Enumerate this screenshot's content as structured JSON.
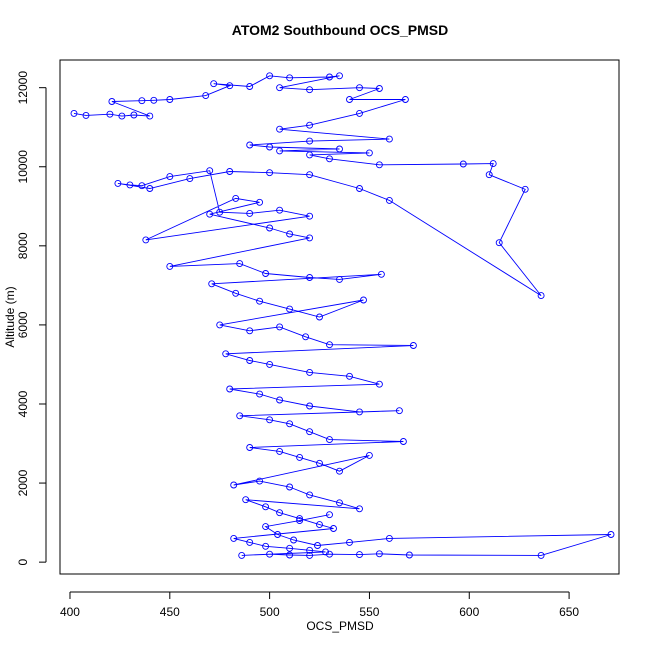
{
  "chart_data": {
    "type": "line",
    "title": "ATOM2 Southbound OCS_PMSD",
    "xlabel": "OCS_PMSD",
    "ylabel": "Altitude (m)",
    "xlim": [
      395,
      675
    ],
    "ylim": [
      -300,
      12700
    ],
    "x_ticks": [
      400,
      450,
      500,
      550,
      600,
      650
    ],
    "y_ticks": [
      0,
      2000,
      4000,
      6000,
      8000,
      10000,
      12000
    ],
    "grid": false,
    "legend": "none",
    "marker": "open-circle",
    "series": [
      {
        "color": "#0000ff",
        "points": [
          [
            402,
            11350
          ],
          [
            408,
            11300
          ],
          [
            420,
            11330
          ],
          [
            426,
            11280
          ],
          [
            432,
            11310
          ],
          [
            440,
            11280
          ],
          [
            421,
            11650
          ],
          [
            436,
            11670
          ],
          [
            442,
            11680
          ],
          [
            450,
            11700
          ],
          [
            468,
            11800
          ],
          [
            480,
            12050
          ],
          [
            472,
            12100
          ],
          [
            490,
            12030
          ],
          [
            500,
            12300
          ],
          [
            510,
            12250
          ],
          [
            530,
            12270
          ],
          [
            535,
            12300
          ],
          [
            505,
            12000
          ],
          [
            520,
            11950
          ],
          [
            545,
            12000
          ],
          [
            555,
            11980
          ],
          [
            540,
            11700
          ],
          [
            568,
            11700
          ],
          [
            545,
            11350
          ],
          [
            520,
            11050
          ],
          [
            505,
            10950
          ],
          [
            560,
            10700
          ],
          [
            520,
            10650
          ],
          [
            490,
            10550
          ],
          [
            500,
            10500
          ],
          [
            535,
            10450
          ],
          [
            505,
            10400
          ],
          [
            550,
            10350
          ],
          [
            520,
            10300
          ],
          [
            530,
            10200
          ],
          [
            555,
            10050
          ],
          [
            597,
            10070
          ],
          [
            612,
            10080
          ],
          [
            610,
            9800
          ],
          [
            628,
            9430
          ],
          [
            615,
            8080
          ],
          [
            636,
            6740
          ],
          [
            560,
            9150
          ],
          [
            545,
            9450
          ],
          [
            520,
            9800
          ],
          [
            500,
            9850
          ],
          [
            480,
            9880
          ],
          [
            460,
            9700
          ],
          [
            440,
            9450
          ],
          [
            424,
            9580
          ],
          [
            430,
            9540
          ],
          [
            436,
            9520
          ],
          [
            450,
            9750
          ],
          [
            470,
            9900
          ],
          [
            475,
            8850
          ],
          [
            490,
            8820
          ],
          [
            505,
            8900
          ],
          [
            520,
            8750
          ],
          [
            438,
            8150
          ],
          [
            483,
            9200
          ],
          [
            495,
            9100
          ],
          [
            470,
            8800
          ],
          [
            500,
            8450
          ],
          [
            510,
            8300
          ],
          [
            520,
            8200
          ],
          [
            450,
            7480
          ],
          [
            485,
            7550
          ],
          [
            498,
            7300
          ],
          [
            520,
            7200
          ],
          [
            535,
            7150
          ],
          [
            556,
            7280
          ],
          [
            471,
            7040
          ],
          [
            483,
            6800
          ],
          [
            495,
            6600
          ],
          [
            510,
            6400
          ],
          [
            525,
            6200
          ],
          [
            547,
            6630
          ],
          [
            475,
            6000
          ],
          [
            490,
            5850
          ],
          [
            505,
            5950
          ],
          [
            518,
            5700
          ],
          [
            530,
            5500
          ],
          [
            572,
            5480
          ],
          [
            478,
            5270
          ],
          [
            490,
            5100
          ],
          [
            500,
            5000
          ],
          [
            520,
            4800
          ],
          [
            540,
            4700
          ],
          [
            555,
            4500
          ],
          [
            480,
            4380
          ],
          [
            495,
            4250
          ],
          [
            505,
            4100
          ],
          [
            520,
            3950
          ],
          [
            545,
            3800
          ],
          [
            565,
            3830
          ],
          [
            485,
            3700
          ],
          [
            500,
            3600
          ],
          [
            510,
            3500
          ],
          [
            520,
            3300
          ],
          [
            530,
            3100
          ],
          [
            567,
            3050
          ],
          [
            490,
            2900
          ],
          [
            505,
            2800
          ],
          [
            515,
            2650
          ],
          [
            525,
            2500
          ],
          [
            535,
            2300
          ],
          [
            550,
            2700
          ],
          [
            482,
            1950
          ],
          [
            495,
            2050
          ],
          [
            510,
            1900
          ],
          [
            520,
            1700
          ],
          [
            535,
            1500
          ],
          [
            545,
            1350
          ],
          [
            488,
            1580
          ],
          [
            498,
            1400
          ],
          [
            505,
            1250
          ],
          [
            515,
            1100
          ],
          [
            525,
            950
          ],
          [
            532,
            850
          ],
          [
            482,
            600
          ],
          [
            490,
            500
          ],
          [
            498,
            400
          ],
          [
            510,
            350
          ],
          [
            520,
            300
          ],
          [
            528,
            260
          ],
          [
            486,
            170
          ],
          [
            500,
            200
          ],
          [
            510,
            180
          ],
          [
            520,
            170
          ],
          [
            530,
            200
          ],
          [
            545,
            190
          ],
          [
            555,
            210
          ],
          [
            570,
            180
          ],
          [
            636,
            170
          ],
          [
            671,
            700
          ],
          [
            560,
            600
          ],
          [
            540,
            500
          ],
          [
            524,
            420
          ],
          [
            512,
            560
          ],
          [
            504,
            700
          ],
          [
            498,
            900
          ],
          [
            515,
            1050
          ],
          [
            530,
            1200
          ]
        ]
      }
    ]
  }
}
